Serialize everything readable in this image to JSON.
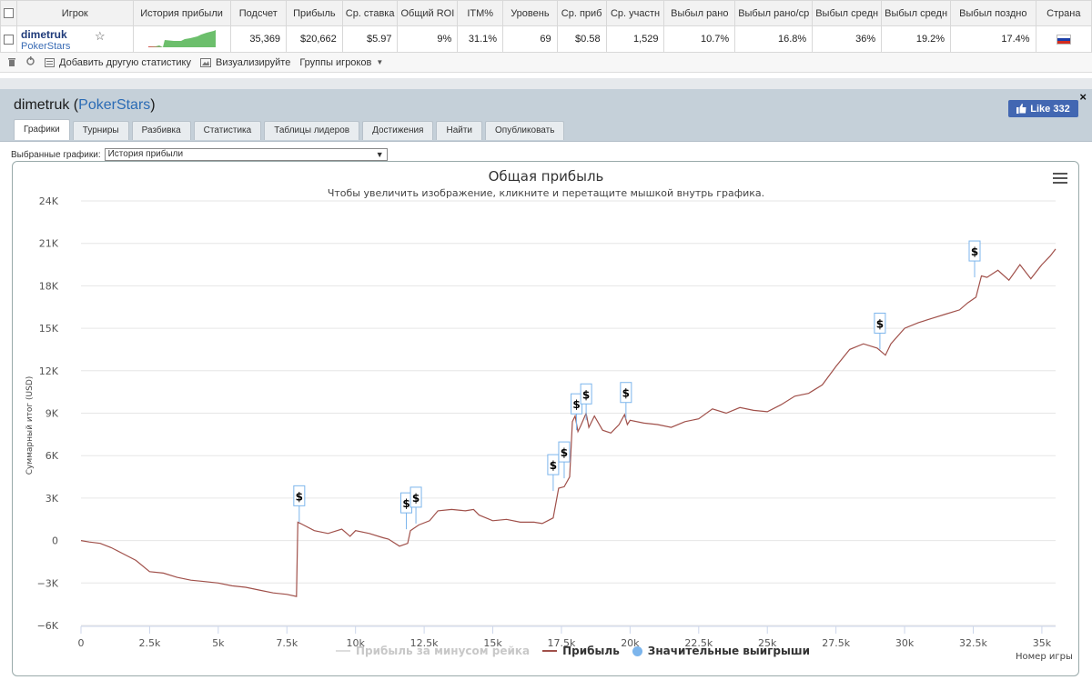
{
  "table": {
    "headers": [
      "Игрок",
      "История прибыли",
      "Подсчет",
      "Прибыль",
      "Ср. ставка",
      "Общий ROI",
      "ITM%",
      "Уровень",
      "Ср. приб",
      "Ср. участн",
      "Выбыл рано",
      "Выбыл рано/ср",
      "Выбыл средн",
      "Выбыл средн",
      "Выбыл поздно",
      "Страна"
    ],
    "row": {
      "player": "dimetruk",
      "network": "PokerStars",
      "count": "35,369",
      "profit": "$20,662",
      "avg_stake": "$5.97",
      "roi": "9%",
      "itm": "31.1%",
      "level": "69",
      "avg_profit": "$0.58",
      "avg_entrants": "1,529",
      "early": "10.7%",
      "early_mid": "16.8%",
      "mid": "36%",
      "mid2": "19.2%",
      "late": "17.4%"
    }
  },
  "toolbar": {
    "add_stats": "Добавить другую статистику",
    "visualize": "Визуализируйте",
    "groups": "Группы игроков"
  },
  "panel": {
    "player": "dimetruk",
    "network": "PokerStars",
    "like_label": "Like 332",
    "close": "×",
    "tabs": [
      "Графики",
      "Турниры",
      "Разбивка",
      "Статистика",
      "Таблицы лидеров",
      "Достижения",
      "Найти",
      "Опубликовать"
    ],
    "select_label": "Выбранные графики:",
    "select_value": "История прибыли"
  },
  "chart_data": {
    "type": "line",
    "title": "Общая прибыль",
    "subtitle": "Чтобы увеличить изображение, кликните и перетащите мышкой внутрь графика.",
    "ylabel": "Суммарный итог (USD)",
    "xlabel": "Номер игры",
    "ylim": [
      -6000,
      24000
    ],
    "xlim": [
      0,
      35500
    ],
    "yticks": [
      "−6K",
      "−3K",
      "0",
      "3K",
      "6K",
      "9K",
      "12K",
      "15K",
      "18K",
      "21K",
      "24K"
    ],
    "ytick_values": [
      -6000,
      -3000,
      0,
      3000,
      6000,
      9000,
      12000,
      15000,
      18000,
      21000,
      24000
    ],
    "xticks": [
      "0",
      "2.5k",
      "5k",
      "7.5k",
      "10k",
      "12.5k",
      "15k",
      "17.5k",
      "20k",
      "22.5k",
      "25k",
      "27.5k",
      "30k",
      "32.5k",
      "35k"
    ],
    "xtick_values": [
      0,
      2500,
      5000,
      7500,
      10000,
      12500,
      15000,
      17500,
      20000,
      22500,
      25000,
      27500,
      30000,
      32500,
      35000
    ],
    "series": [
      {
        "name": "Прибыль за минусом рейка",
        "color": "#cccccc",
        "visible": false,
        "x": [],
        "y": []
      },
      {
        "name": "Прибыль",
        "color": "#a0504a",
        "x": [
          0,
          300,
          700,
          1100,
          1500,
          2000,
          2500,
          3000,
          3500,
          4000,
          4500,
          5000,
          5500,
          6000,
          6500,
          7000,
          7500,
          7850,
          7900,
          8000,
          8500,
          9000,
          9500,
          9800,
          10000,
          10500,
          11000,
          11200,
          11600,
          11900,
          12000,
          12300,
          12700,
          13000,
          13500,
          14000,
          14300,
          14500,
          15000,
          15500,
          16000,
          16500,
          16800,
          17000,
          17200,
          17400,
          17600,
          17800,
          17900,
          18000,
          18100,
          18200,
          18400,
          18500,
          18700,
          19000,
          19300,
          19600,
          19800,
          19900,
          20000,
          20500,
          21000,
          21500,
          22000,
          22500,
          23000,
          23500,
          24000,
          24500,
          25000,
          25500,
          26000,
          26500,
          27000,
          27500,
          28000,
          28500,
          29000,
          29300,
          29500,
          30000,
          30500,
          31000,
          31500,
          32000,
          32300,
          32600,
          32800,
          33000,
          33400,
          33800,
          34200,
          34600,
          35000,
          35300,
          35500
        ],
        "y": [
          0,
          -100,
          -200,
          -500,
          -900,
          -1400,
          -2200,
          -2300,
          -2600,
          -2800,
          -2900,
          -3000,
          -3200,
          -3300,
          -3500,
          -3700,
          -3800,
          -3950,
          1300,
          1200,
          700,
          500,
          800,
          300,
          700,
          500,
          200,
          100,
          -400,
          -200,
          700,
          1100,
          1400,
          2100,
          2200,
          2100,
          2200,
          1800,
          1400,
          1500,
          1300,
          1300,
          1200,
          1400,
          1600,
          3700,
          3800,
          4500,
          8400,
          8800,
          7700,
          8100,
          9000,
          8000,
          8800,
          7800,
          7600,
          8200,
          8900,
          8200,
          8500,
          8300,
          8200,
          8000,
          8400,
          8600,
          9300,
          9000,
          9400,
          9200,
          9100,
          9600,
          10200,
          10400,
          11000,
          12300,
          13500,
          13900,
          13600,
          13100,
          13900,
          15000,
          15400,
          15700,
          16000,
          16300,
          16800,
          17200,
          18700,
          18600,
          19100,
          18400,
          19500,
          18500,
          19500,
          20100,
          20600
        ]
      },
      {
        "name": "Значительные выигрыши",
        "color": "#7cb5ec",
        "type": "flags",
        "x": [
          7950,
          11850,
          12200,
          17200,
          17600,
          18050,
          18400,
          19850,
          29100,
          32550
        ],
        "y": [
          1300,
          800,
          1200,
          3500,
          4400,
          7800,
          8500,
          8600,
          13500,
          18600
        ],
        "labels": [
          "$",
          "$",
          "$",
          "$",
          "$",
          "$",
          "$",
          "$",
          "$",
          "$"
        ]
      }
    ],
    "grid": true,
    "legend": "bottom-center"
  },
  "colors": {
    "accent": "#2a6bb5",
    "facebook": "#4267b2",
    "line": "#a0504a",
    "flag_line": "#7cb5ec",
    "panel_head": "#c5d0d9"
  },
  "icons": {
    "trash": "trash-icon",
    "refresh": "refresh-icon",
    "add": "add-stat-icon",
    "visualize": "image-icon",
    "star": "star-icon",
    "menu": "hamburger-icon"
  }
}
